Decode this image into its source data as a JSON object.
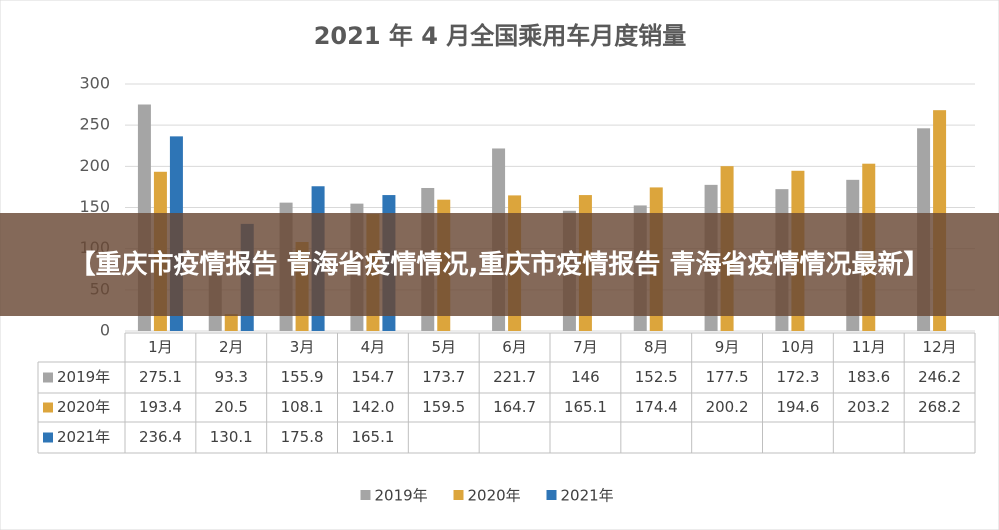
{
  "chart_data": {
    "type": "bar",
    "title": "2021 年 4 月全国乘用车月度销量",
    "categories": [
      "1月",
      "2月",
      "3月",
      "4月",
      "5月",
      "6月",
      "7月",
      "8月",
      "9月",
      "10月",
      "11月",
      "12月"
    ],
    "series": [
      {
        "name": "2019年",
        "color": "#a5a5a5",
        "values": [
          275.1,
          93.3,
          155.9,
          154.7,
          173.7,
          221.7,
          146,
          152.5,
          177.5,
          172.3,
          183.6,
          246.2
        ],
        "value_labels": [
          "275.1",
          "93.3",
          "155.9",
          "154.7",
          "173.7",
          "221.7",
          "146",
          "152.5",
          "177.5",
          "172.3",
          "183.6",
          "246.2"
        ]
      },
      {
        "name": "2020年",
        "color": "#dca53c",
        "values": [
          193.4,
          20.5,
          108.1,
          142.0,
          159.5,
          164.7,
          165.1,
          174.4,
          200.2,
          194.6,
          203.2,
          268.2
        ],
        "value_labels": [
          "193.4",
          "20.5",
          "108.1",
          "142.0",
          "159.5",
          "164.7",
          "165.1",
          "174.4",
          "200.2",
          "194.6",
          "203.2",
          "268.2"
        ]
      },
      {
        "name": "2021年",
        "color": "#2e75b6",
        "values": [
          236.4,
          130.1,
          175.8,
          165.1,
          null,
          null,
          null,
          null,
          null,
          null,
          null,
          null
        ],
        "value_labels": [
          "236.4",
          "130.1",
          "175.8",
          "165.1",
          null,
          null,
          null,
          null,
          null,
          null,
          null,
          null
        ]
      }
    ],
    "ylim": [
      0,
      300
    ],
    "yticks": [
      0,
      50,
      100,
      150,
      200,
      250,
      300
    ],
    "grid": true,
    "legend": "bottom"
  },
  "banner": "【重庆市疫情报告 青海省疫情情况,重庆市疫情报告 青海省疫情情况最新】"
}
